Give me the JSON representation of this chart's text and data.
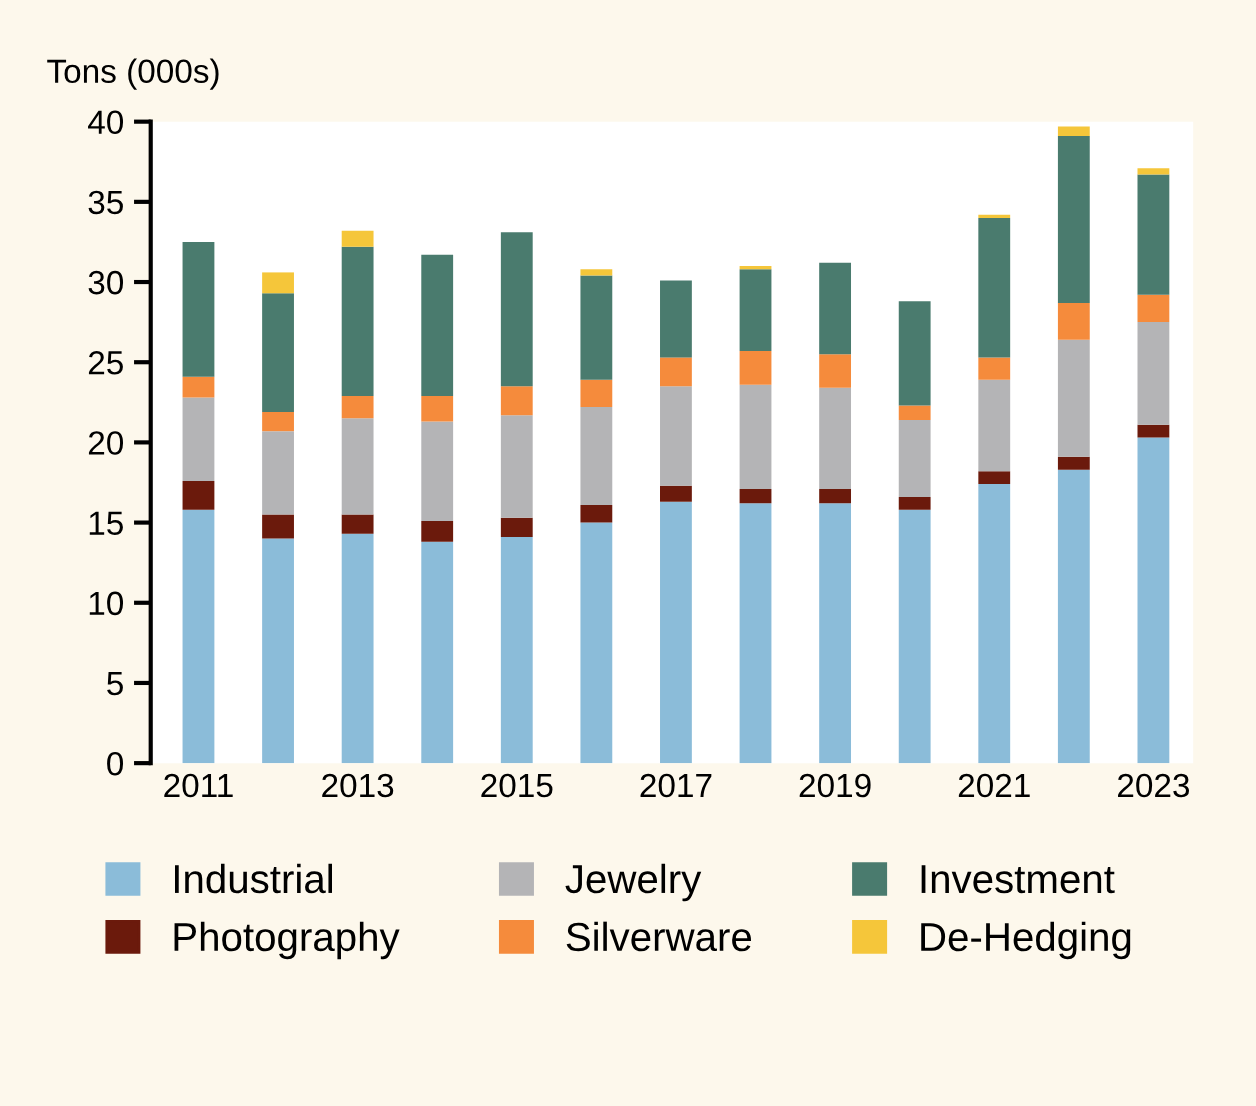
{
  "chart_data": {
    "type": "bar",
    "stacked": true,
    "ylabel": "Tons (000s)",
    "categories": [
      "2011",
      null,
      "2013",
      null,
      "2015",
      null,
      "2017",
      null,
      "2019",
      null,
      "2021",
      null,
      "2023"
    ],
    "ylim": [
      0,
      40
    ],
    "yticks": [
      0,
      5,
      10,
      15,
      20,
      25,
      30,
      35,
      40
    ],
    "grid": false,
    "legend": "bottom",
    "series": [
      {
        "name": "Industrial",
        "color": "#8bbcd9",
        "values": [
          15.8,
          14.0,
          14.3,
          13.8,
          14.1,
          15.0,
          16.3,
          16.2,
          16.2,
          15.8,
          17.4,
          18.3,
          20.3
        ]
      },
      {
        "name": "Photography",
        "color": "#6b1a0c",
        "values": [
          1.8,
          1.5,
          1.2,
          1.3,
          1.2,
          1.1,
          1.0,
          0.9,
          0.9,
          0.8,
          0.8,
          0.8,
          0.8
        ]
      },
      {
        "name": "Jewelry",
        "color": "#b4b4b6",
        "values": [
          5.2,
          5.2,
          6.0,
          6.2,
          6.4,
          6.1,
          6.2,
          6.5,
          6.3,
          4.8,
          5.7,
          7.3,
          6.4
        ]
      },
      {
        "name": "Silverware",
        "color": "#f58b3c",
        "values": [
          1.3,
          1.2,
          1.4,
          1.6,
          1.8,
          1.7,
          1.8,
          2.1,
          2.1,
          0.9,
          1.4,
          2.3,
          1.7
        ]
      },
      {
        "name": "Investment",
        "color": "#4a7b6e",
        "values": [
          8.4,
          7.4,
          9.3,
          8.8,
          9.6,
          6.5,
          4.8,
          5.1,
          5.7,
          6.5,
          8.7,
          10.4,
          7.5
        ]
      },
      {
        "name": "De-Hedging",
        "color": "#f5c63a",
        "values": [
          0,
          1.3,
          1.0,
          0,
          0,
          0.4,
          0,
          0.2,
          0,
          0,
          0.2,
          0.6,
          0.4
        ]
      }
    ]
  }
}
